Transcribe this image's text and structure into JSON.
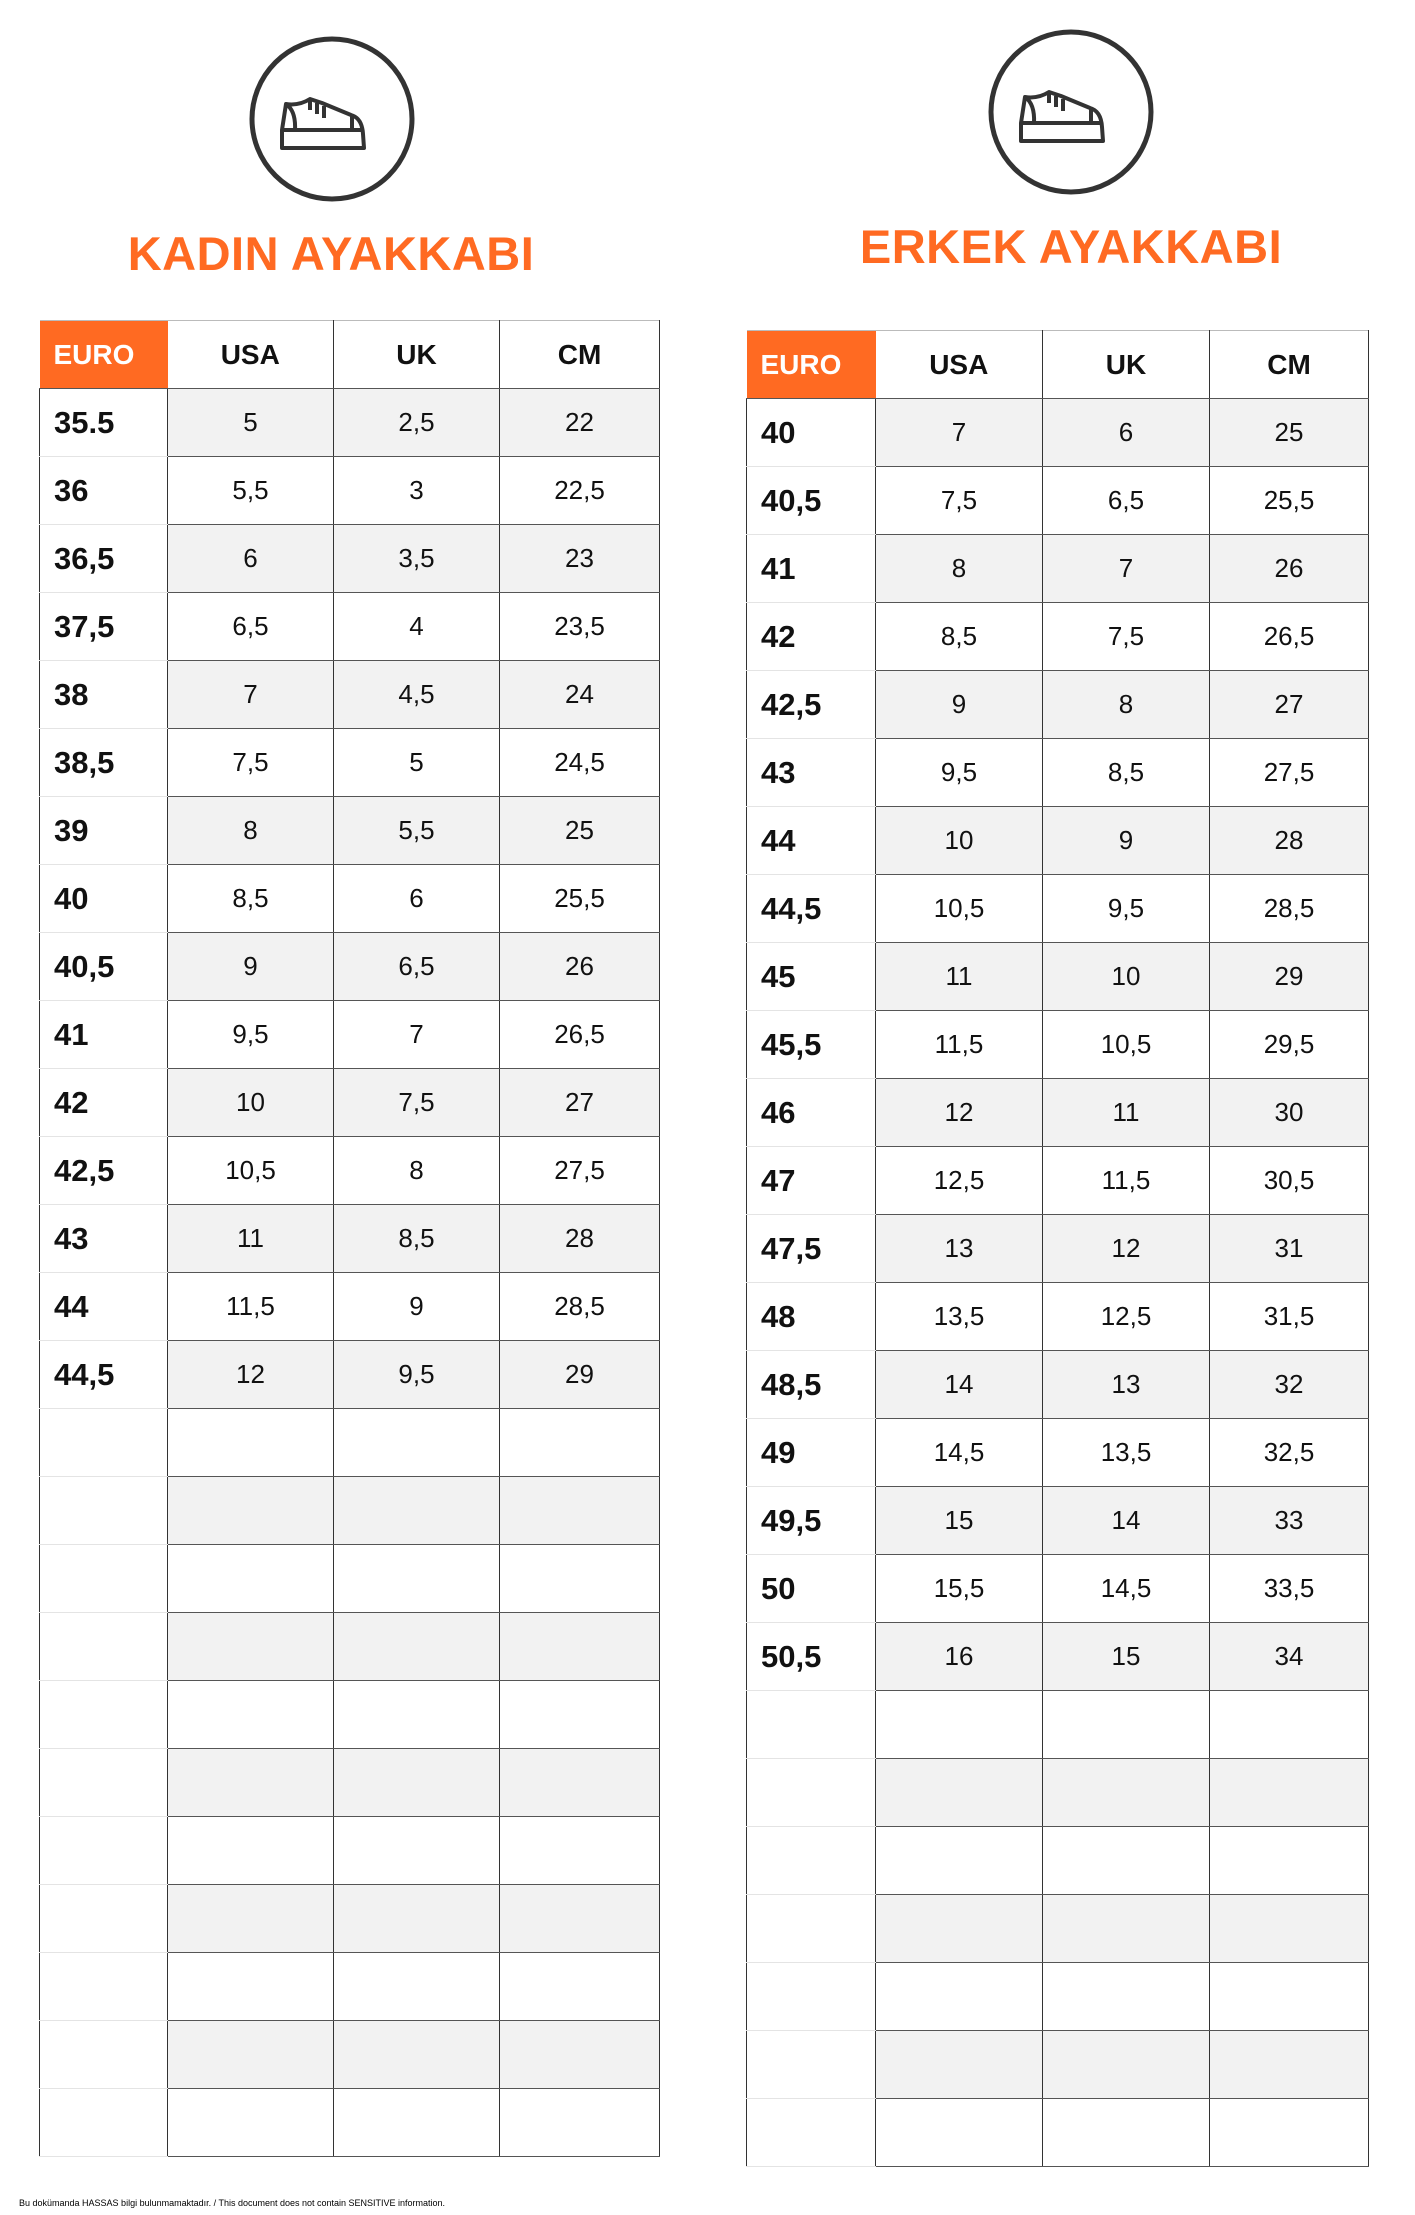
{
  "colors": {
    "accent": "#FF6A22",
    "stripe": "#f2f2f2"
  },
  "women": {
    "icon": "shoe-icon",
    "title": "KADIN AYAKKABI",
    "headers": [
      "EURO",
      "USA",
      "UK",
      "CM"
    ],
    "rows": [
      [
        "35.5",
        "5",
        "2,5",
        "22"
      ],
      [
        "36",
        "5,5",
        "3",
        "22,5"
      ],
      [
        "36,5",
        "6",
        "3,5",
        "23"
      ],
      [
        "37,5",
        "6,5",
        "4",
        "23,5"
      ],
      [
        "38",
        "7",
        "4,5",
        "24"
      ],
      [
        "38,5",
        "7,5",
        "5",
        "24,5"
      ],
      [
        "39",
        "8",
        "5,5",
        "25"
      ],
      [
        "40",
        "8,5",
        "6",
        "25,5"
      ],
      [
        "40,5",
        "9",
        "6,5",
        "26"
      ],
      [
        "41",
        "9,5",
        "7",
        "26,5"
      ],
      [
        "42",
        "10",
        "7,5",
        "27"
      ],
      [
        "42,5",
        "10,5",
        "8",
        "27,5"
      ],
      [
        "43",
        "11",
        "8,5",
        "28"
      ],
      [
        "44",
        "11,5",
        "9",
        "28,5"
      ],
      [
        "44,5",
        "12",
        "9,5",
        "29"
      ]
    ]
  },
  "men": {
    "icon": "shoe-icon",
    "title": "ERKEK AYAKKABI",
    "headers": [
      "EURO",
      "USA",
      "UK",
      "CM"
    ],
    "rows": [
      [
        "40",
        "7",
        "6",
        "25"
      ],
      [
        "40,5",
        "7,5",
        "6,5",
        "25,5"
      ],
      [
        "41",
        "8",
        "7",
        "26"
      ],
      [
        "42",
        "8,5",
        "7,5",
        "26,5"
      ],
      [
        "42,5",
        "9",
        "8",
        "27"
      ],
      [
        "43",
        "9,5",
        "8,5",
        "27,5"
      ],
      [
        "44",
        "10",
        "9",
        "28"
      ],
      [
        "44,5",
        "10,5",
        "9,5",
        "28,5"
      ],
      [
        "45",
        "11",
        "10",
        "29"
      ],
      [
        "45,5",
        "11,5",
        "10,5",
        "29,5"
      ],
      [
        "46",
        "12",
        "11",
        "30"
      ],
      [
        "47",
        "12,5",
        "11,5",
        "30,5"
      ],
      [
        "47,5",
        "13",
        "12",
        "31"
      ],
      [
        "48",
        "13,5",
        "12,5",
        "31,5"
      ],
      [
        "48,5",
        "14",
        "13",
        "32"
      ],
      [
        "49",
        "14,5",
        "13,5",
        "32,5"
      ],
      [
        "49,5",
        "15",
        "14",
        "33"
      ],
      [
        "50",
        "15,5",
        "14,5",
        "33,5"
      ],
      [
        "50,5",
        "16",
        "15",
        "34"
      ]
    ]
  },
  "footer": "Bu dokümanda HASSAS bilgi bulunmamaktadır. / This document does not contain SENSITIVE information."
}
